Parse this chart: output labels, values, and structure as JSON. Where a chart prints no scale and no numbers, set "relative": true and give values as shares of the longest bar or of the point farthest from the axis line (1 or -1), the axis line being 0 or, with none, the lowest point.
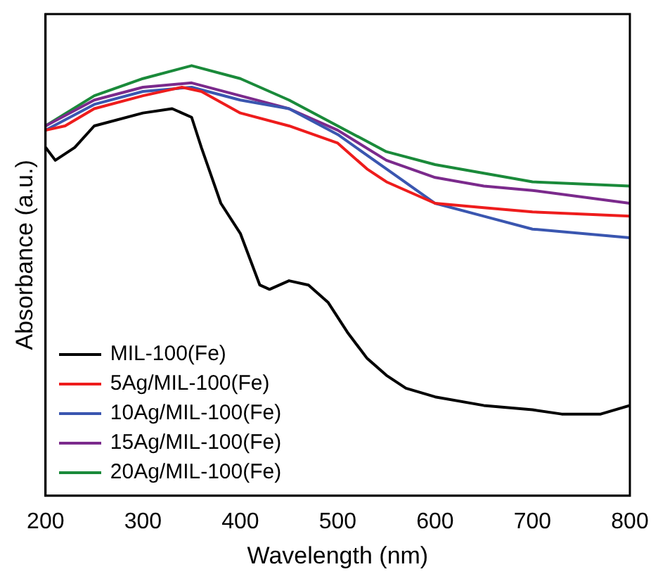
{
  "chart_data": {
    "type": "line",
    "xlabel": "Wavelength (nm)",
    "ylabel": "Absorbance (a.u.)",
    "relative": true,
    "xlim": [
      200,
      800
    ],
    "xticks": [
      200,
      300,
      400,
      500,
      600,
      700,
      800
    ],
    "legend": "bottom left",
    "grid": false,
    "marker": "none",
    "line_style": "solid",
    "series": [
      {
        "name": "MIL-100(Fe)",
        "color": "#000000",
        "x": [
          200,
          210,
          230,
          250,
          300,
          330,
          350,
          360,
          380,
          400,
          410,
          420,
          430,
          450,
          470,
          490,
          510,
          530,
          550,
          570,
          600,
          650,
          700,
          730,
          770,
          800
        ],
        "values": [
          0.81,
          0.78,
          0.81,
          0.86,
          0.89,
          0.9,
          0.88,
          0.81,
          0.68,
          0.61,
          0.55,
          0.49,
          0.48,
          0.5,
          0.49,
          0.45,
          0.38,
          0.32,
          0.28,
          0.25,
          0.23,
          0.21,
          0.2,
          0.19,
          0.19,
          0.21
        ]
      },
      {
        "name": "5Ag/MIL-100(Fe)",
        "color": "#ee1c1c",
        "x": [
          200,
          220,
          250,
          300,
          340,
          360,
          400,
          450,
          500,
          530,
          550,
          600,
          650,
          700,
          800
        ],
        "values": [
          0.85,
          0.86,
          0.9,
          0.93,
          0.95,
          0.94,
          0.89,
          0.86,
          0.82,
          0.76,
          0.73,
          0.68,
          0.67,
          0.66,
          0.65
        ]
      },
      {
        "name": "10Ag/MIL-100(Fe)",
        "color": "#3a56b0",
        "x": [
          200,
          250,
          300,
          350,
          400,
          450,
          500,
          550,
          600,
          650,
          700,
          800
        ],
        "values": [
          0.85,
          0.91,
          0.94,
          0.95,
          0.92,
          0.9,
          0.84,
          0.76,
          0.68,
          0.65,
          0.62,
          0.6
        ]
      },
      {
        "name": "15Ag/MIL-100(Fe)",
        "color": "#7b2a8c",
        "x": [
          200,
          250,
          300,
          350,
          400,
          450,
          500,
          550,
          600,
          650,
          700,
          800
        ],
        "values": [
          0.86,
          0.92,
          0.95,
          0.96,
          0.93,
          0.9,
          0.85,
          0.78,
          0.74,
          0.72,
          0.71,
          0.68
        ]
      },
      {
        "name": "20Ag/MIL-100(Fe)",
        "color": "#1a8a3a",
        "x": [
          200,
          250,
          300,
          350,
          400,
          450,
          500,
          550,
          600,
          650,
          700,
          800
        ],
        "values": [
          0.86,
          0.93,
          0.97,
          1.0,
          0.97,
          0.92,
          0.86,
          0.8,
          0.77,
          0.75,
          0.73,
          0.72
        ]
      }
    ]
  }
}
